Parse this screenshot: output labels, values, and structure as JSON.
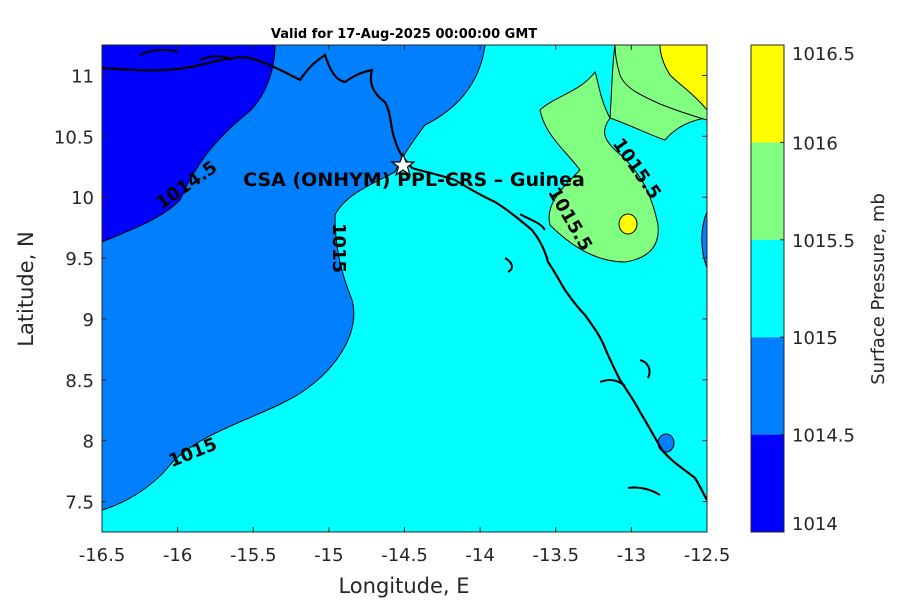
{
  "chart_data": {
    "type": "contour-map",
    "title": "Valid for 17-Aug-2025 00:00:00 GMT",
    "xlabel": "Longitude, E",
    "ylabel": "Latitude, N",
    "xlim": [
      -16.5,
      -12.5
    ],
    "ylim": [
      7.25,
      11.25
    ],
    "xticks": [
      "-16.5",
      "-16",
      "-15.5",
      "-15",
      "-14.5",
      "-14",
      "-13.5",
      "-13",
      "-12.5"
    ],
    "yticks": [
      "7.5",
      "8",
      "8.5",
      "9",
      "9.5",
      "10",
      "10.5",
      "11"
    ],
    "colorbar": {
      "label": "Surface Pressure, mb",
      "ticks": [
        "1014",
        "1014.5",
        "1015",
        "1015.5",
        "1016",
        "1016.5"
      ],
      "levels": [
        1014,
        1014.5,
        1015,
        1015.5,
        1016,
        1016.5
      ],
      "colors": [
        "#0000ff",
        "#0080ff",
        "#00ffff",
        "#80ff80",
        "#ffff00",
        "#ff8000"
      ]
    },
    "contour_labels": [
      "1014.5",
      "1015",
      "1015",
      "1015.5",
      "1015.5"
    ],
    "station": {
      "name": "CSA (ONHYM) PPL-CRS  – Guinea",
      "lon": -14.5,
      "lat": 10.3
    }
  }
}
